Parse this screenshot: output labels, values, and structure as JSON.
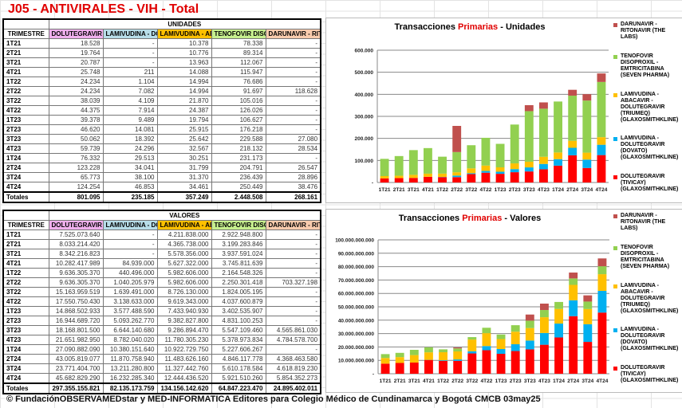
{
  "title": "J05 - ANTIVIRALES - VIH - Total",
  "quarter_header": "TRIMESTRE",
  "columns": [
    "DOLUTEGRAVIR (TI",
    "LAMIVUDINA - DOL",
    "LAMIVUDINA - ABA",
    "TENOFOVIR DISOPR",
    "DARUNAVIR - RITO"
  ],
  "column_colors": [
    "#f0b0ee",
    "#b7dde8",
    "#ffc000",
    "#c6ef8e",
    "#f8cbad"
  ],
  "quarters": [
    "1T21",
    "2T21",
    "3T21",
    "4T21",
    "1T22",
    "2T22",
    "3T22",
    "4T22",
    "1T23",
    "2T23",
    "3T23",
    "4T23",
    "1T24",
    "2T24",
    "3T24",
    "4T24"
  ],
  "totals_label": "Totales",
  "units_table": {
    "group_header": "UNIDADES",
    "rows": [
      [
        "18.528",
        "-",
        "10.378",
        "78.338",
        "-"
      ],
      [
        "19.764",
        "-",
        "10.776",
        "89.314",
        "-"
      ],
      [
        "20.787",
        "-",
        "13.963",
        "112.067",
        "-"
      ],
      [
        "25.748",
        "211",
        "14.088",
        "115.947",
        "-"
      ],
      [
        "24.234",
        "1.104",
        "14.994",
        "76.686",
        "-"
      ],
      [
        "24.234",
        "7.082",
        "14.994",
        "91.697",
        "118.628"
      ],
      [
        "38.039",
        "4.109",
        "21.870",
        "105.016",
        "-"
      ],
      [
        "44.375",
        "7.914",
        "24.387",
        "126.026",
        "-"
      ],
      [
        "39.378",
        "9.489",
        "19.794",
        "106.627",
        "-"
      ],
      [
        "46.620",
        "14.081",
        "25.915",
        "176.218",
        "-"
      ],
      [
        "50.062",
        "18.392",
        "25.642",
        "229.588",
        "27.080"
      ],
      [
        "59.739",
        "24.296",
        "32.567",
        "218.132",
        "28.534"
      ],
      [
        "76.332",
        "29.513",
        "30.251",
        "231.173",
        "-"
      ],
      [
        "123.228",
        "34.041",
        "31.799",
        "204.791",
        "26.547"
      ],
      [
        "65.773",
        "38.100",
        "31.370",
        "236.439",
        "28.896"
      ],
      [
        "124.254",
        "46.853",
        "34.461",
        "250.449",
        "38.476"
      ]
    ],
    "totals": [
      "801.095",
      "235.185",
      "357.249",
      "2.448.508",
      "268.161"
    ]
  },
  "values_table": {
    "group_header": "VALORES",
    "rows": [
      [
        "7.525.073.640",
        "-",
        "4.211.838.000",
        "2.922.948.800",
        "-"
      ],
      [
        "8.033.214.420",
        "-",
        "4.365.738.000",
        "3.199.283.846",
        "-"
      ],
      [
        "8.342.216.823",
        "-",
        "5.578.356.000",
        "3.937.591.024",
        "-"
      ],
      [
        "10.282.417.989",
        "84.939.000",
        "5.627.322.000",
        "3.745.811.639",
        "-"
      ],
      [
        "9.636.305.370",
        "440.496.000",
        "5.982.606.000",
        "2.164.548.326",
        "-"
      ],
      [
        "9.636.305.370",
        "1.040.205.979",
        "5.982.606.000",
        "2.250.301.418",
        "703.327.198"
      ],
      [
        "15.163.959.519",
        "1.639.491.000",
        "8.726.130.000",
        "1.824.005.195",
        "-"
      ],
      [
        "17.550.750.430",
        "3.138.633.000",
        "9.619.343.000",
        "4.037.600.879",
        "-"
      ],
      [
        "14.868.502.933",
        "3.577.488.590",
        "7.433.940.930",
        "3.402.535.907",
        "-"
      ],
      [
        "16.944.689.720",
        "5.093.262.770",
        "9.382.827.800",
        "4.831.100.253",
        "-"
      ],
      [
        "18.168.801.500",
        "6.644.140.680",
        "9.286.894.470",
        "5.547.109.460",
        "4.565.861.030"
      ],
      [
        "21.651.982.950",
        "8.782.040.020",
        "11.780.305.230",
        "5.378.973.834",
        "4.784.578.700"
      ],
      [
        "27.090.882.090",
        "10.380.151.640",
        "10.922.729.750",
        "5.227.606.267",
        "-"
      ],
      [
        "43.005.819.077",
        "11.870.758.940",
        "11.483.626.160",
        "4.846.117.778",
        "4.368.463.580"
      ],
      [
        "23.771.404.700",
        "13.211.280.800",
        "11.327.442.760",
        "5.610.178.584",
        "4.618.819.230"
      ],
      [
        "45.682.829.290",
        "16.232.285.340",
        "12.444.436.520",
        "5.921.510.260",
        "5.854.352.273"
      ]
    ],
    "totals": [
      "297.355.155.821",
      "82.135.173.759",
      "134.156.142.620",
      "64.847.223.470",
      "24.895.402.011"
    ]
  },
  "chart_data": [
    {
      "type": "bar",
      "stacked": true,
      "title_parts": [
        "Transacciones ",
        "Primarias",
        " - Unidades"
      ],
      "categories": [
        "1T21",
        "2T21",
        "3T21",
        "4T21",
        "1T22",
        "2T22",
        "3T22",
        "4T22",
        "1T23",
        "2T23",
        "3T23",
        "4T23",
        "1T24",
        "2T24",
        "3T24",
        "4T24"
      ],
      "ylim": [
        0,
        600000
      ],
      "yticks": [
        "-",
        "100.000",
        "200.000",
        "300.000",
        "400.000",
        "500.000",
        "600.000"
      ],
      "legend_position": "right",
      "source": "units_table"
    },
    {
      "type": "bar",
      "stacked": true,
      "title_parts": [
        "Transacciones ",
        "Primarias",
        " - Valores"
      ],
      "categories": [
        "1T21",
        "2T21",
        "3T21",
        "4T21",
        "1T22",
        "2T22",
        "3T22",
        "4T22",
        "1T23",
        "2T23",
        "3T23",
        "4T23",
        "1T24",
        "2T24",
        "3T24",
        "4T24"
      ],
      "ylim": [
        0,
        100000000000
      ],
      "yticks": [
        "-",
        "10.000.000.000",
        "20.000.000.000",
        "30.000.000.000",
        "40.000.000.000",
        "50.000.000.000",
        "60.000.000.000",
        "70.000.000.000",
        "80.000.000.000",
        "90.000.000.000",
        "100.000.000.000"
      ],
      "legend_position": "right",
      "source": "values_table"
    }
  ],
  "series": [
    {
      "name": "DOLUTEGRAVIR (TIVICAY) (GLAXOSMITHKLINE)",
      "color": "#ff0000"
    },
    {
      "name": "LAMIVUDINA - DOLUTEGRAVIR (DOVATO) (GLAXOSMITHKLINE)",
      "color": "#00b0f0"
    },
    {
      "name": "LAMIVUDINA - ABACAVIR - DOLUTEGRAVIR (TRIUMEQ) (GLAXOSMITHKLINE)",
      "color": "#ffc000"
    },
    {
      "name": "TENOFOVIR DISOPROXIL - EMTRICITABINA (SEVEN PHARMA)",
      "color": "#92d050"
    },
    {
      "name": "DARUNAVIR - RITONAVIR (THE LABS)",
      "color": "#c0504d"
    }
  ],
  "footer": "© FundaciónOBSERVAMEDstar y MED-INFORMATICA Editores para Colegio Médico de Cundinamarca y Bogotá CMCB 03may25"
}
